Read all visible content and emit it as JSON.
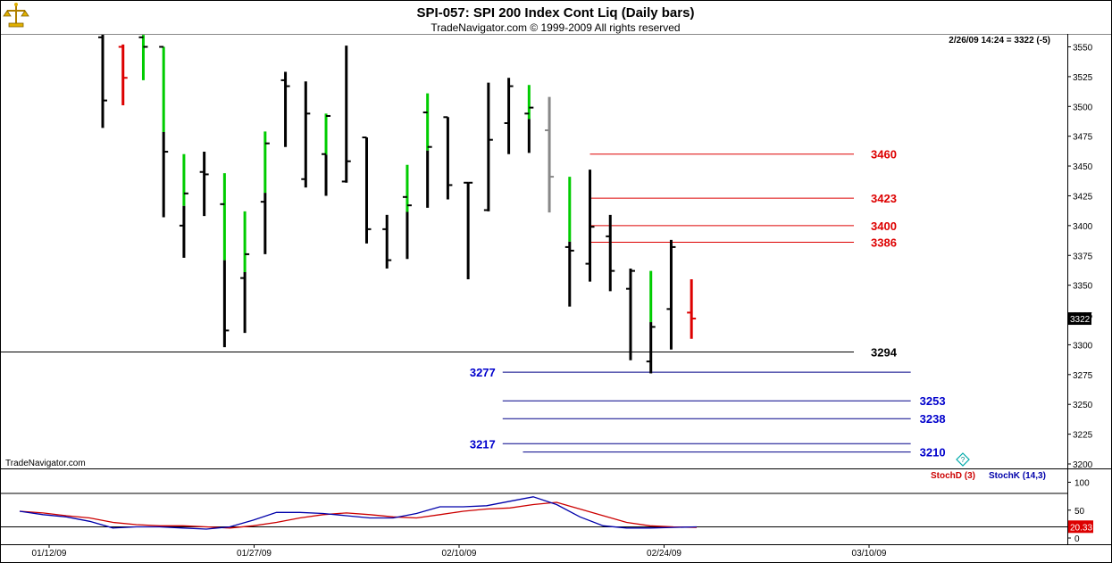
{
  "header": {
    "title": "SPI-057:  SPI 200 Index Cont Liq  (Daily bars)",
    "subtitle": "TradeNavigator.com © 1999-2009 All rights reserved",
    "quote": "2/26/09 14:24 = 3322 (-5)",
    "watermark": "TradeNavigator.com",
    "logo_icon": "scales-logo-icon",
    "help_icon": "diamond-question-icon"
  },
  "colors": {
    "bar_up": "#00cc00",
    "bar_down": "#dd0000",
    "bar_neutral": "#000000",
    "bar_gray": "#888888",
    "resistance_line": "#dd0000",
    "support_line": "#000088",
    "pivot_line": "#000000",
    "stoch_d": "#cc0000",
    "stoch_k": "#0000aa"
  },
  "chart_data": [
    {
      "type": "ohlc",
      "y_ticks": [
        "3550",
        "3525",
        "3500",
        "3475",
        "3450",
        "3425",
        "3400",
        "3375",
        "3350",
        "3325",
        "3300",
        "3275",
        "3250",
        "3225",
        "3200"
      ],
      "ylim": [
        3200,
        3560
      ],
      "x_ticks": [
        {
          "label": "01/12/09",
          "index": 0
        },
        {
          "label": "01/27/09",
          "index": 10
        },
        {
          "label": "02/10/09",
          "index": 20
        },
        {
          "label": "02/24/09",
          "index": 30
        },
        {
          "label": "03/10/09",
          "index": 40
        }
      ],
      "last_price_label": "3322",
      "bars": [
        {
          "o": 3558,
          "h": 3600,
          "l": 3482,
          "c": 3505,
          "color": "black"
        },
        {
          "o": 3550,
          "h": 3552,
          "l": 3501,
          "c": 3524,
          "color": "red"
        },
        {
          "o": 3558,
          "h": 3560,
          "l": 3522,
          "c": 3550,
          "color": "green"
        },
        {
          "o": 3550,
          "h": 3550,
          "l": 3407,
          "c": 3462,
          "color": "mixed"
        },
        {
          "o": 3400,
          "h": 3460,
          "l": 3373,
          "c": 3427,
          "color": "mixed"
        },
        {
          "o": 3445,
          "h": 3462,
          "l": 3408,
          "c": 3443,
          "color": "black"
        },
        {
          "o": 3418,
          "h": 3444,
          "l": 3298,
          "c": 3312,
          "color": "mixed"
        },
        {
          "o": 3356,
          "h": 3412,
          "l": 3310,
          "c": 3376,
          "color": "mixed"
        },
        {
          "o": 3420,
          "h": 3479,
          "l": 3376,
          "c": 3469,
          "color": "mixed"
        },
        {
          "o": 3522,
          "h": 3529,
          "l": 3466,
          "c": 3517,
          "color": "black"
        },
        {
          "o": 3439,
          "h": 3521,
          "l": 3432,
          "c": 3494,
          "color": "black"
        },
        {
          "o": 3460,
          "h": 3494,
          "l": 3425,
          "c": 3492,
          "color": "mixed"
        },
        {
          "o": 3437,
          "h": 3551,
          "l": 3436,
          "c": 3454,
          "color": "black"
        },
        {
          "o": 3474,
          "h": 3474,
          "l": 3385,
          "c": 3397,
          "color": "black"
        },
        {
          "o": 3397,
          "h": 3409,
          "l": 3364,
          "c": 3371,
          "color": "black"
        },
        {
          "o": 3424,
          "h": 3451,
          "l": 3372,
          "c": 3417,
          "color": "mixed"
        },
        {
          "o": 3495,
          "h": 3511,
          "l": 3415,
          "c": 3466,
          "color": "mixed"
        },
        {
          "o": 3491,
          "h": 3491,
          "l": 3422,
          "c": 3434,
          "color": "black"
        },
        {
          "o": 3436,
          "h": 3436,
          "l": 3355,
          "c": 3436,
          "color": "black"
        },
        {
          "o": 3413,
          "h": 3520,
          "l": 3412,
          "c": 3472,
          "color": "black"
        },
        {
          "o": 3486,
          "h": 3524,
          "l": 3460,
          "c": 3517,
          "color": "black"
        },
        {
          "o": 3494,
          "h": 3518,
          "l": 3461,
          "c": 3499,
          "color": "mixed"
        },
        {
          "o": 3480,
          "h": 3508,
          "l": 3411,
          "c": 3441,
          "color": "gray"
        },
        {
          "o": 3382,
          "h": 3441,
          "l": 3332,
          "c": 3379,
          "color": "mixed"
        },
        {
          "o": 3368,
          "h": 3447,
          "l": 3353,
          "c": 3399,
          "color": "black"
        },
        {
          "o": 3391,
          "h": 3409,
          "l": 3345,
          "c": 3362,
          "color": "black"
        },
        {
          "o": 3347,
          "h": 3364,
          "l": 3287,
          "c": 3362,
          "color": "black"
        },
        {
          "o": 3286,
          "h": 3362,
          "l": 3276,
          "c": 3315,
          "color": "mixed"
        },
        {
          "o": 3330,
          "h": 3388,
          "l": 3296,
          "c": 3382,
          "color": "black"
        },
        {
          "o": 3327,
          "h": 3355,
          "l": 3305,
          "c": 3322,
          "color": "red"
        }
      ],
      "levels": [
        {
          "value": 3460,
          "label": "3460",
          "kind": "resistance",
          "x_from": 24,
          "x_to": 37,
          "label_side": "right"
        },
        {
          "value": 3423,
          "label": "3423",
          "kind": "resistance",
          "x_from": 24,
          "x_to": 37,
          "label_side": "right"
        },
        {
          "value": 3400,
          "label": "3400",
          "kind": "resistance",
          "x_from": 24,
          "x_to": 37,
          "label_side": "right"
        },
        {
          "value": 3386,
          "label": "3386",
          "kind": "resistance",
          "x_from": 24,
          "x_to": 37,
          "label_side": "right"
        },
        {
          "value": 3294,
          "label": "3294",
          "kind": "pivot",
          "x_from": -6,
          "x_to": 37,
          "label_side": "right"
        },
        {
          "value": 3277,
          "label": "3277",
          "kind": "support",
          "x_from": 19.7,
          "x_to": 39.8,
          "label_side": "left"
        },
        {
          "value": 3253,
          "label": "3253",
          "kind": "support",
          "x_from": 19.7,
          "x_to": 39.8,
          "label_side": "right-far"
        },
        {
          "value": 3238,
          "label": "3238",
          "kind": "support",
          "x_from": 19.7,
          "x_to": 39.8,
          "label_side": "right-far"
        },
        {
          "value": 3217,
          "label": "3217",
          "kind": "support",
          "x_from": 19.7,
          "x_to": 39.8,
          "label_side": "left"
        },
        {
          "value": 3210,
          "label": "3210",
          "kind": "support",
          "x_from": 20.7,
          "x_to": 39.8,
          "label_side": "right-far"
        }
      ]
    },
    {
      "type": "line",
      "title": "StochD (3)  StochK (14,3)",
      "legend": [
        {
          "name": "StochD (3)",
          "color": "#cc0000"
        },
        {
          "name": "StochK (14,3)",
          "color": "#0000aa"
        }
      ],
      "y_ticks": [
        "100",
        "50",
        "0"
      ],
      "ylim": [
        0,
        100
      ],
      "ref_lines": [
        80,
        20
      ],
      "last_value_label": "20.33",
      "series": [
        {
          "name": "StochD (3)",
          "values": [
            48,
            45,
            40,
            36,
            28,
            24,
            22,
            22,
            20,
            18,
            22,
            28,
            36,
            42,
            45,
            42,
            38,
            36,
            42,
            48,
            52,
            54,
            60,
            64,
            52,
            40,
            28,
            22,
            20,
            19
          ]
        },
        {
          "name": "StochK (14,3)",
          "values": [
            48,
            42,
            38,
            30,
            18,
            20,
            20,
            18,
            16,
            20,
            32,
            46,
            46,
            44,
            40,
            36,
            36,
            44,
            56,
            56,
            58,
            66,
            74,
            60,
            38,
            22,
            18,
            18,
            19,
            20
          ]
        }
      ]
    }
  ]
}
